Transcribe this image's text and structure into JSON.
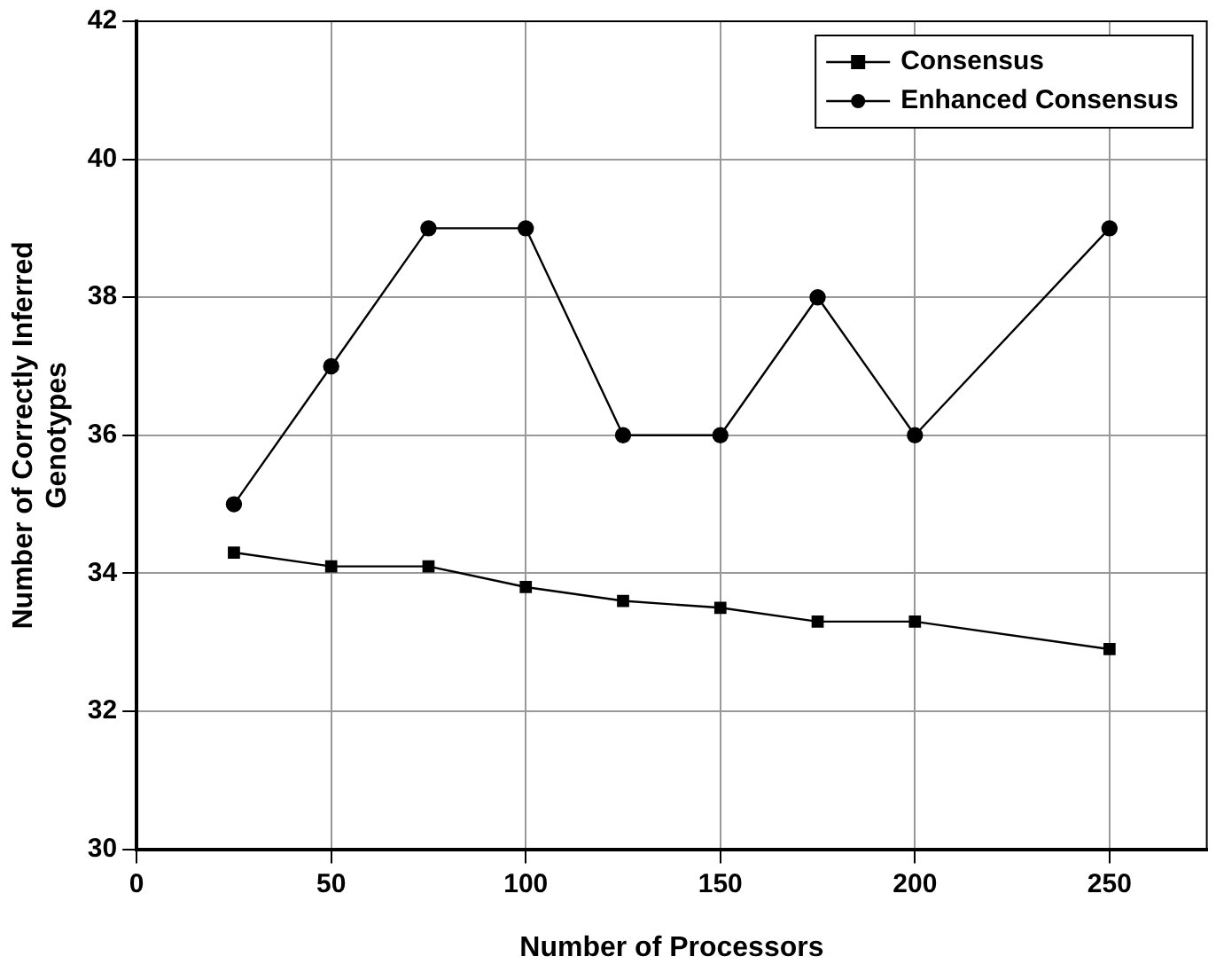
{
  "chart_data": {
    "type": "line",
    "xlabel": "Number of Processors",
    "ylabel": "Number of Correctly Inferred\nGenotypes",
    "x": [
      25,
      50,
      75,
      100,
      125,
      150,
      175,
      200,
      250
    ],
    "series": [
      {
        "name": "Consensus",
        "color": "#000000",
        "marker": "square",
        "values": [
          34.3,
          34.1,
          34.1,
          33.8,
          33.6,
          33.5,
          33.3,
          33.3,
          32.9
        ]
      },
      {
        "name": "Enhanced Consensus",
        "color": "#000000",
        "marker": "circle",
        "values": [
          35,
          37,
          39,
          39,
          36,
          36,
          38,
          36,
          39
        ]
      }
    ],
    "xlim": [
      0,
      275
    ],
    "xticks": [
      0,
      50,
      100,
      150,
      200,
      250
    ],
    "ylim": [
      30,
      42
    ],
    "yticks": [
      30,
      32,
      34,
      36,
      38,
      40,
      42
    ],
    "grid": true,
    "legend": "top right",
    "line_style": "solid"
  }
}
